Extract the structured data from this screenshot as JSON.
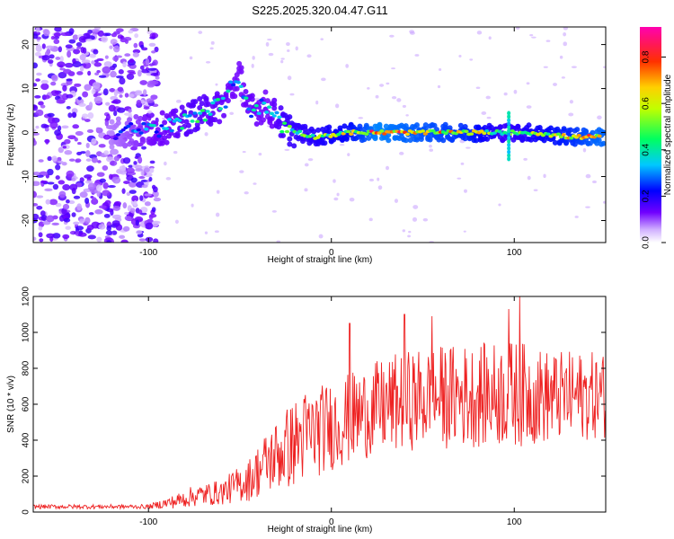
{
  "title": "S225.2025.320.04.47.G11",
  "chart_data": [
    {
      "type": "heatmap",
      "name": "spectrogram",
      "xlabel": "Height of straight line (km)",
      "ylabel": "Frequency (Hz)",
      "xlim": [
        -163,
        150
      ],
      "ylim": [
        -25,
        24
      ],
      "x_ticks": [
        -100,
        0,
        100
      ],
      "y_ticks": [
        -20,
        -10,
        0,
        10,
        20
      ],
      "colorbar": {
        "label": "Normalized spectral amplitude",
        "range": [
          0.0,
          0.93
        ],
        "ticks": [
          "0.0",
          "0.2",
          "0.4",
          "0.6",
          "0.8"
        ],
        "tick_values": [
          0.0,
          0.2,
          0.4,
          0.6,
          0.8
        ],
        "colors": [
          "#ffffff",
          "#b080ff",
          "#4000ff",
          "#0000ff",
          "#00e0ff",
          "#00ff40",
          "#ffff00",
          "#ff8000",
          "#ff0000",
          "#ff00a0"
        ]
      },
      "ridge": [
        {
          "x": -115,
          "y": 0,
          "a": 0.25
        },
        {
          "x": -100,
          "y": 0.5,
          "a": 0.35
        },
        {
          "x": -85,
          "y": 1.5,
          "a": 0.4
        },
        {
          "x": -75,
          "y": 4,
          "a": 0.45
        },
        {
          "x": -60,
          "y": 6,
          "a": 0.4
        },
        {
          "x": -50,
          "y": 13,
          "a": 0.35
        },
        {
          "x": -45,
          "y": 5,
          "a": 0.4
        },
        {
          "x": -35,
          "y": 6,
          "a": 0.35
        },
        {
          "x": -25,
          "y": 1,
          "a": 0.5
        },
        {
          "x": -10,
          "y": -1,
          "a": 0.55
        },
        {
          "x": 10,
          "y": 0,
          "a": 0.65
        },
        {
          "x": 25,
          "y": 0,
          "a": 0.85
        },
        {
          "x": 40,
          "y": 0,
          "a": 0.8
        },
        {
          "x": 60,
          "y": 0,
          "a": 0.75
        },
        {
          "x": 75,
          "y": 0,
          "a": 0.7
        },
        {
          "x": 95,
          "y": 0,
          "a": 0.5
        },
        {
          "x": 110,
          "y": 0,
          "a": 0.6
        },
        {
          "x": 130,
          "y": -1,
          "a": 0.7
        },
        {
          "x": 145,
          "y": -1,
          "a": 0.8
        }
      ]
    },
    {
      "type": "line",
      "name": "snr",
      "xlabel": "Height of straight line (km)",
      "ylabel": "SNR (10 * v/v)",
      "xlim": [
        -163,
        150
      ],
      "ylim": [
        0,
        1200
      ],
      "x_ticks": [
        -100,
        0,
        100
      ],
      "y_ticks": [
        0,
        200,
        400,
        600,
        800,
        1000,
        1200
      ],
      "color": "#ee2222",
      "envelope": [
        {
          "x": -163,
          "mean": 30,
          "amp": 12
        },
        {
          "x": -100,
          "mean": 30,
          "amp": 12
        },
        {
          "x": -85,
          "mean": 60,
          "amp": 40
        },
        {
          "x": -75,
          "mean": 90,
          "amp": 60
        },
        {
          "x": -60,
          "mean": 110,
          "amp": 70
        },
        {
          "x": -45,
          "mean": 180,
          "amp": 120
        },
        {
          "x": -35,
          "mean": 280,
          "amp": 180
        },
        {
          "x": -25,
          "mean": 350,
          "amp": 230
        },
        {
          "x": -15,
          "mean": 420,
          "amp": 260
        },
        {
          "x": 0,
          "mean": 480,
          "amp": 250
        },
        {
          "x": 20,
          "mean": 560,
          "amp": 260
        },
        {
          "x": 40,
          "mean": 620,
          "amp": 280
        },
        {
          "x": 60,
          "mean": 640,
          "amp": 290
        },
        {
          "x": 80,
          "mean": 650,
          "amp": 290
        },
        {
          "x": 100,
          "mean": 660,
          "amp": 300
        },
        {
          "x": 120,
          "mean": 640,
          "amp": 260
        },
        {
          "x": 150,
          "mean": 650,
          "amp": 240
        }
      ],
      "peaks": [
        {
          "x": 103,
          "y": 1200
        },
        {
          "x": 97,
          "y": 1130
        },
        {
          "x": 40,
          "y": 1100
        },
        {
          "x": 55,
          "y": 1090
        },
        {
          "x": 10,
          "y": 1050
        }
      ]
    }
  ]
}
